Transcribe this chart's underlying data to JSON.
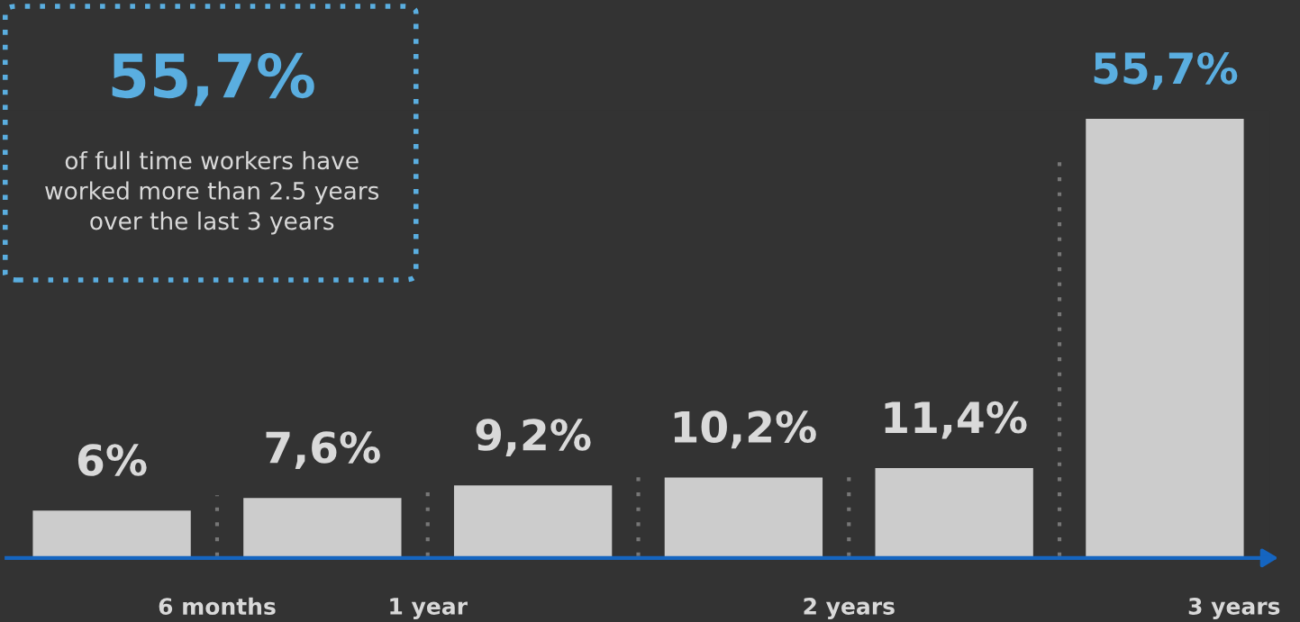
{
  "chart_data": {
    "type": "bar",
    "title": "55,7%",
    "subtitle": "of full time workers have worked more than 2.5 years over the last 3 years",
    "categories": [
      null,
      null,
      null,
      null,
      null,
      null
    ],
    "values": [
      6,
      7.6,
      9.2,
      10.2,
      11.4,
      55.7
    ],
    "value_labels": [
      "6%",
      "7,6%",
      "9,2%",
      "10,2%",
      "11,4%",
      "55,7%"
    ],
    "color": "#cccccc",
    "annotations": [
      "6 months",
      "1 year",
      "2 years",
      "3 years"
    ],
    "grid": false
  }
}
